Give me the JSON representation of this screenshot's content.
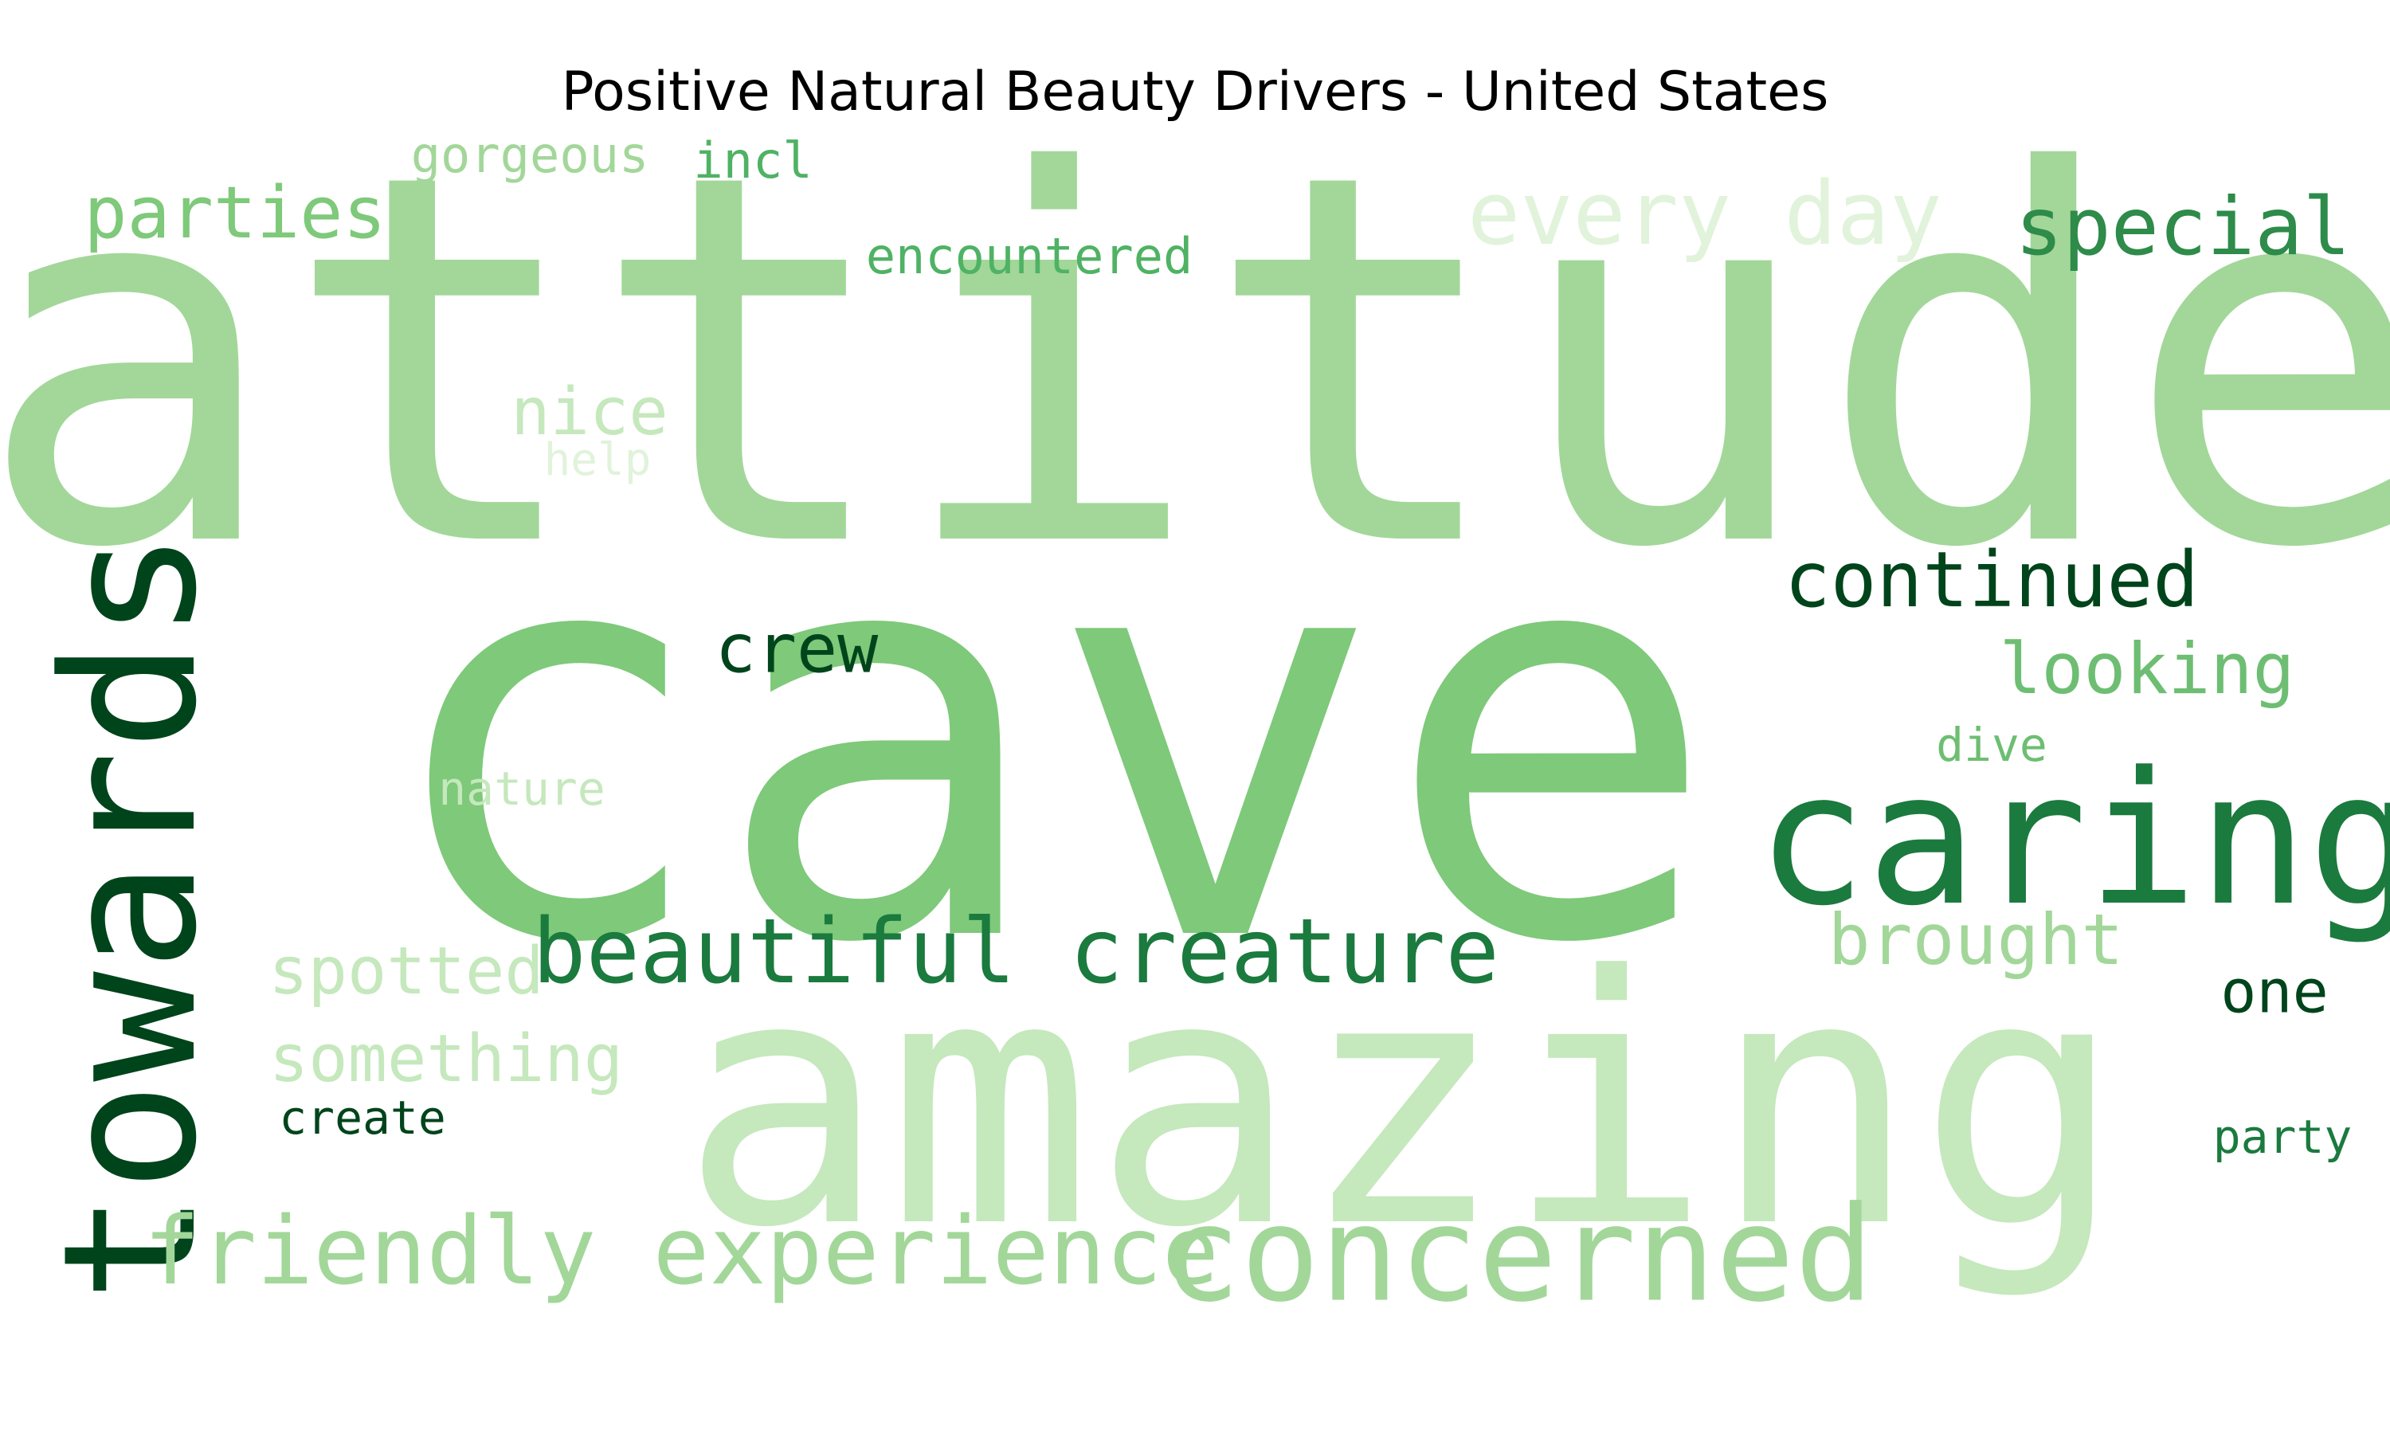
{
  "title": "Positive Natural Beauty Drivers - United States",
  "palette": [
    "#00441b",
    "#1b7a3e",
    "#4fb264",
    "#7ec97a",
    "#a2d799",
    "#c5e8bd",
    "#e1f3db"
  ],
  "words": [
    {
      "text": "attitude",
      "color": "#a2d799"
    },
    {
      "text": "cave",
      "color": "#7ec97a"
    },
    {
      "text": "amazing",
      "color": "#c5e8bd"
    },
    {
      "text": "towards",
      "color": "#00441b"
    },
    {
      "text": "caring",
      "color": "#1b7a3e"
    },
    {
      "text": "concerned",
      "color": "#a2d799"
    },
    {
      "text": "beautiful creature",
      "color": "#1b7a3e"
    },
    {
      "text": "friendly experience",
      "color": "#a2d799"
    },
    {
      "text": "every day",
      "color": "#e1f3db"
    },
    {
      "text": "special",
      "color": "#2e8b4a"
    },
    {
      "text": "parties",
      "color": "#7ec97a"
    },
    {
      "text": "continued",
      "color": "#00441b"
    },
    {
      "text": "looking",
      "color": "#6dbe72"
    },
    {
      "text": "crew",
      "color": "#00441b"
    },
    {
      "text": "brought",
      "color": "#a2d799"
    },
    {
      "text": "spotted",
      "color": "#c5e8bd"
    },
    {
      "text": "something",
      "color": "#c5e8bd"
    },
    {
      "text": "nice",
      "color": "#c5e8bd"
    },
    {
      "text": "one",
      "color": "#00441b"
    },
    {
      "text": "encountered",
      "color": "#4fb264"
    },
    {
      "text": "gorgeous",
      "color": "#a2d799"
    },
    {
      "text": "incl",
      "color": "#4fb264"
    },
    {
      "text": "create",
      "color": "#00441b"
    },
    {
      "text": "party",
      "color": "#1b7a3e"
    },
    {
      "text": "dive",
      "color": "#6dbe72"
    },
    {
      "text": "nature",
      "color": "#c5e8bd"
    },
    {
      "text": "help",
      "color": "#e1f3db"
    }
  ]
}
